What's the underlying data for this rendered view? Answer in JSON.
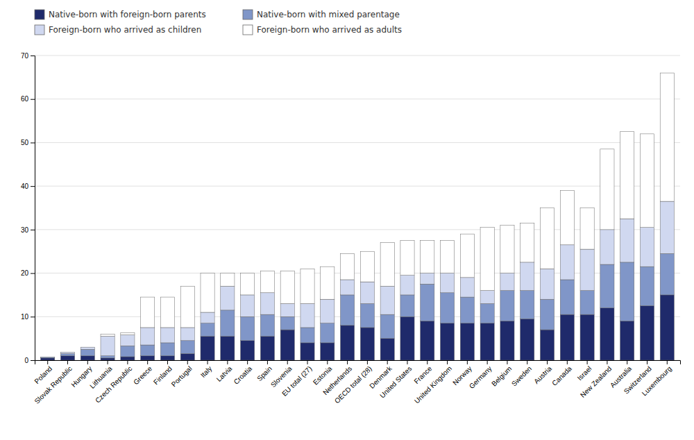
{
  "chart_data": {
    "type": "bar",
    "stacked": true,
    "grid": true,
    "legend": "top",
    "categories": [
      "Poland",
      "Slovak Republic",
      "Hungary",
      "Lithuania",
      "Czech Republic",
      "Greece",
      "Finland",
      "Portugal",
      "Italy",
      "Latvia",
      "Croatia",
      "Spain",
      "Slovenia",
      "EU total (27)",
      "Estonia",
      "Netherlands",
      "OECD total (28)",
      "Denmark",
      "United States",
      "France",
      "United Kingdom",
      "Norway",
      "Germany",
      "Belgium",
      "Sweden",
      "Austria",
      "Canada",
      "Israel",
      "New Zealand",
      "Australia",
      "Switzerland",
      "Luxembourg"
    ],
    "series": [
      {
        "name": "Native-born with foreign-born parents",
        "color": "#1f2a6b",
        "values": [
          0.5,
          1.0,
          1.0,
          0.5,
          0.8,
          1.0,
          1.0,
          1.5,
          5.5,
          5.5,
          4.5,
          5.5,
          7.0,
          4.0,
          4.0,
          8.0,
          7.5,
          5.0,
          10.0,
          9.0,
          8.5,
          8.5,
          8.5,
          9.0,
          9.5,
          7.0,
          10.5,
          10.5,
          12.0,
          9.0,
          12.5,
          15.0
        ]
      },
      {
        "name": "Native-born with mixed parentage",
        "color": "#8096c8",
        "values": [
          0.2,
          0.5,
          1.5,
          0.5,
          2.5,
          2.5,
          3.0,
          3.0,
          3.0,
          6.0,
          5.5,
          5.0,
          3.0,
          3.5,
          4.5,
          7.0,
          5.5,
          5.5,
          5.0,
          8.5,
          7.0,
          6.0,
          4.5,
          7.0,
          6.5,
          7.0,
          8.0,
          5.5,
          10.0,
          13.5,
          9.0,
          9.5
        ]
      },
      {
        "name": "Foreign-born who arrived as children",
        "color": "#d0d8f0",
        "values": [
          0.0,
          0.3,
          0.5,
          4.5,
          2.5,
          4.0,
          3.5,
          3.0,
          2.5,
          5.5,
          5.0,
          5.0,
          3.0,
          5.5,
          5.5,
          3.5,
          5.0,
          6.5,
          4.5,
          2.5,
          4.5,
          4.5,
          3.0,
          4.0,
          6.5,
          7.0,
          8.0,
          9.5,
          8.0,
          10.0,
          9.0,
          12.0
        ]
      },
      {
        "name": "Foreign-born who arrived as adults",
        "color": "#ffffff",
        "values": [
          0.0,
          0.0,
          0.0,
          0.5,
          0.5,
          7.0,
          7.0,
          9.5,
          9.0,
          3.0,
          5.0,
          5.0,
          7.5,
          8.0,
          7.5,
          6.0,
          7.0,
          10.0,
          8.0,
          7.5,
          7.5,
          10.0,
          14.5,
          11.0,
          9.0,
          14.0,
          12.5,
          9.5,
          18.5,
          20.0,
          21.5,
          29.5
        ]
      }
    ],
    "ylim": [
      0,
      70
    ],
    "yticks": [
      0,
      10,
      20,
      30,
      40,
      50,
      60,
      70
    ]
  }
}
